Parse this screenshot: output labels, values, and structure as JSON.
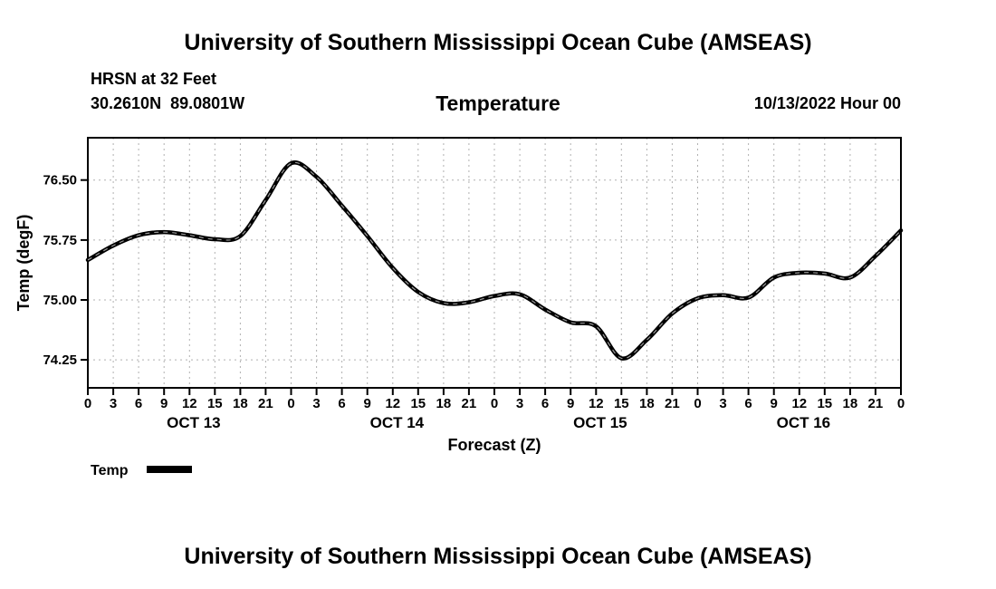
{
  "header": {
    "title": "University of Southern Mississippi Ocean Cube (AMSEAS)",
    "station": "HRSN at 32 Feet",
    "coordinates": "30.2610N  89.0801W",
    "variable": "Temperature",
    "run": "10/13/2022 Hour 00"
  },
  "legend": {
    "label": "Temp"
  },
  "footer": {
    "title": "University of Southern Mississippi Ocean Cube (AMSEAS)"
  },
  "chart_data": {
    "type": "line",
    "title": "Temperature",
    "xlabel": "Forecast (Z)",
    "ylabel": "Temp (degF)",
    "series_name": "Temp",
    "x_hours": [
      0,
      3,
      6,
      9,
      12,
      15,
      18,
      21,
      24,
      27,
      30,
      33,
      36,
      39,
      42,
      45,
      48,
      51,
      54,
      57,
      60,
      63,
      66,
      69,
      72,
      75,
      78,
      81,
      84,
      87,
      90,
      93,
      96
    ],
    "values": [
      75.5,
      75.68,
      75.81,
      75.85,
      75.81,
      75.76,
      75.8,
      76.25,
      76.71,
      76.54,
      76.18,
      75.8,
      75.4,
      75.1,
      74.96,
      74.97,
      75.05,
      75.07,
      74.88,
      74.72,
      74.67,
      74.27,
      74.5,
      74.83,
      75.02,
      75.06,
      75.03,
      75.28,
      75.34,
      75.33,
      75.28,
      75.55,
      75.87
    ],
    "xtick_labels": [
      "0",
      "3",
      "6",
      "9",
      "12",
      "15",
      "18",
      "21",
      "0",
      "3",
      "6",
      "9",
      "12",
      "15",
      "18",
      "21",
      "0",
      "3",
      "6",
      "9",
      "12",
      "15",
      "18",
      "21",
      "0",
      "3",
      "6",
      "9",
      "12",
      "15",
      "18",
      "21",
      "0"
    ],
    "yticks": [
      74.25,
      75.0,
      75.75,
      76.5
    ],
    "ytick_labels": [
      "74.25",
      "75.00",
      "75.75",
      "76.50"
    ],
    "day_labels": [
      "OCT 13",
      "OCT 14",
      "OCT 15",
      "OCT 16"
    ],
    "xlim": [
      0,
      96
    ],
    "ylim": [
      73.9,
      77.03
    ],
    "grid": true,
    "grid_style": "dashed",
    "legend_position": "bottom-left",
    "line_color": "#000000",
    "line_inner_dash_color": "#9a9a9a",
    "grid_color": "#b0b0b0",
    "axis_color": "#000000"
  }
}
